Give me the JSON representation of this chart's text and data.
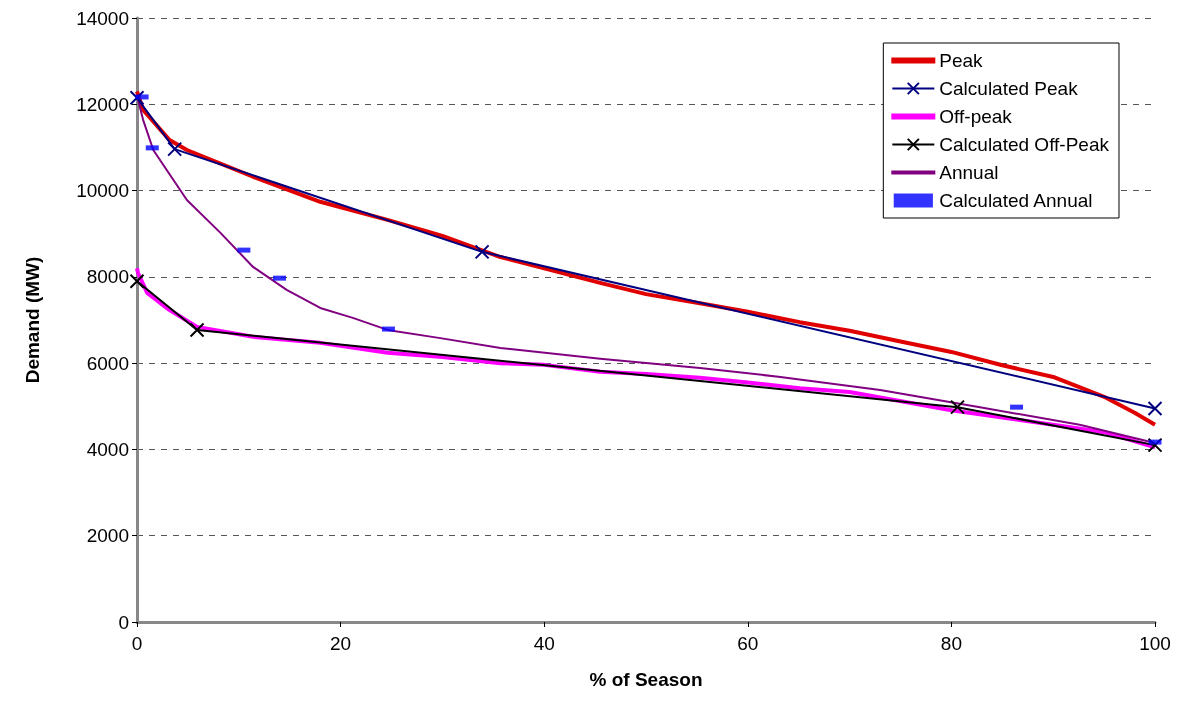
{
  "chart_data": {
    "type": "line",
    "xlabel": "% of Season",
    "ylabel": "Demand (MW)",
    "xlim": [
      0,
      100
    ],
    "xticks": [
      0,
      20,
      40,
      60,
      80,
      100
    ],
    "ylim": [
      0,
      14000
    ],
    "yticks": [
      0,
      2000,
      4000,
      6000,
      8000,
      10000,
      12000,
      14000
    ],
    "grid": "y",
    "legend": "top right",
    "series": [
      {
        "name": "Peak",
        "color": "#e00000",
        "marker": "none",
        "x": [
          0,
          0.6,
          3.2,
          4.9,
          11.4,
          18,
          24.6,
          30,
          35.7,
          40,
          45.5,
          50,
          55.3,
          60,
          65.1,
          70,
          75,
          80,
          85,
          90,
          95,
          98,
          100
        ],
        "values": [
          12300,
          11870,
          11170,
          10940,
          10320,
          9740,
          9320,
          8950,
          8460,
          8200,
          7860,
          7600,
          7390,
          7190,
          6950,
          6750,
          6500,
          6260,
          5950,
          5680,
          5220,
          4850,
          4570
        ]
      },
      {
        "name": "Calculated Peak",
        "color": "#000080",
        "marker": "cross",
        "x": [
          0,
          3.7,
          33.9,
          100
        ],
        "values": [
          12150,
          10960,
          8580,
          4950
        ]
      },
      {
        "name": "Off-peak",
        "color": "#ff00ff",
        "marker": "none",
        "x": [
          0,
          0.1,
          1,
          3.2,
          5.9,
          11.4,
          18,
          24.6,
          30,
          35.7,
          40,
          45.5,
          50,
          55.3,
          60,
          65.1,
          70,
          80,
          90,
          95,
          100
        ],
        "values": [
          8200,
          8090,
          7630,
          7230,
          6840,
          6610,
          6470,
          6240,
          6140,
          6000,
          5960,
          5800,
          5750,
          5660,
          5550,
          5420,
          5330,
          4910,
          4570,
          4400,
          4050
        ]
      },
      {
        "name": "Calculated Off-Peak",
        "color": "#000000",
        "marker": "cross",
        "x": [
          0,
          5.9,
          80.6,
          100
        ],
        "values": [
          7900,
          6770,
          4980,
          4100
        ]
      },
      {
        "name": "Annual",
        "color": "#800080",
        "marker": "none",
        "x": [
          0,
          0.6,
          1.6,
          4.9,
          8.2,
          11.4,
          14.7,
          18,
          21.2,
          24.6,
          29.8,
          35.7,
          45.5,
          55.3,
          63.2,
          73,
          82.8,
          92.6,
          100
        ],
        "values": [
          12200,
          11640,
          10940,
          9780,
          9020,
          8230,
          7700,
          7280,
          7050,
          6770,
          6580,
          6350,
          6100,
          5890,
          5680,
          5380,
          4980,
          4570,
          4150
        ]
      },
      {
        "name": "Calculated Annual",
        "type": "scatter",
        "color": "#0000ff",
        "marker": "square",
        "x": [
          0.5,
          1.5,
          10.5,
          14,
          24.7,
          86.4,
          100
        ],
        "values": [
          12170,
          10990,
          8620,
          7970,
          6790,
          4980,
          4170
        ]
      }
    ]
  }
}
